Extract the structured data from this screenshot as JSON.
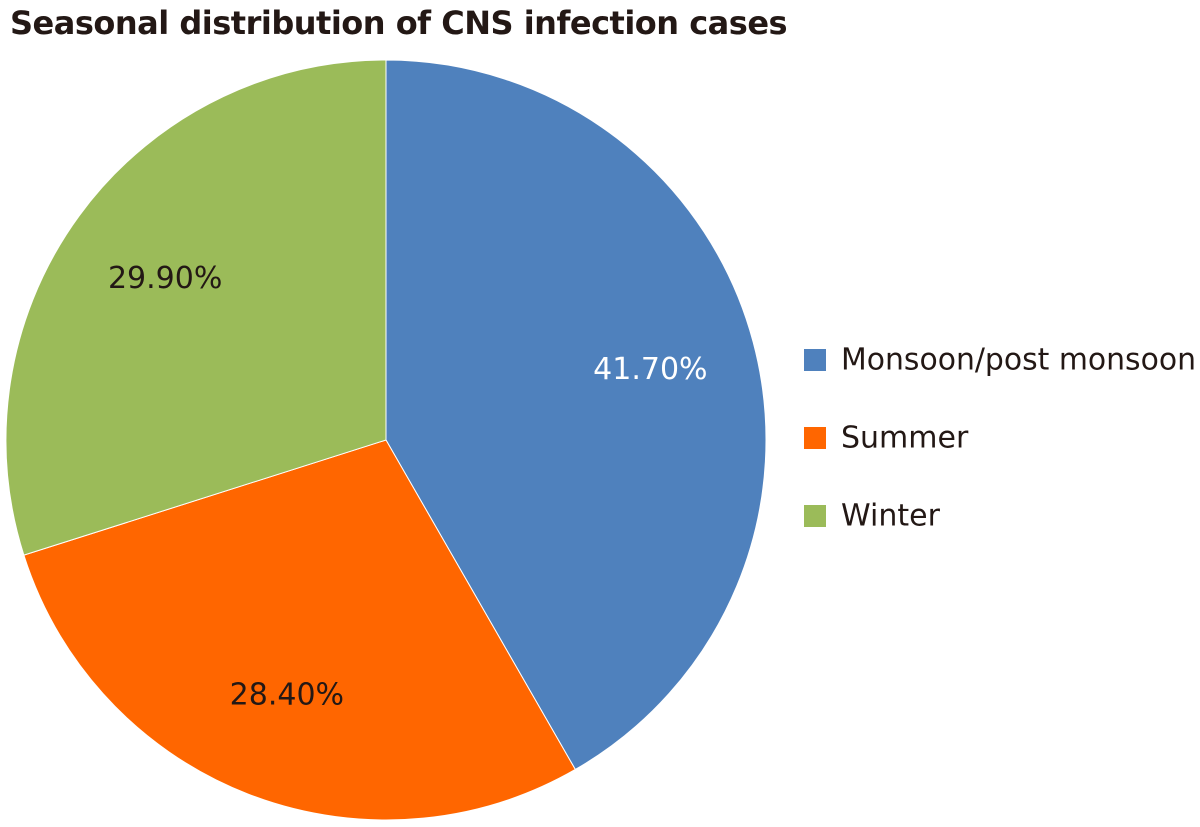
{
  "chart_data": {
    "type": "pie",
    "title": "Seasonal distribution of CNS infection cases",
    "legend_position": "right",
    "slices": [
      {
        "name": "Monsoon/post monsoon",
        "value": 41.7,
        "label": "41.70%",
        "color": "#4F81BD",
        "label_color": "#ffffff"
      },
      {
        "name": "Summer",
        "value": 28.4,
        "label": "28.40%",
        "color": "#FF6600",
        "label_color": "#231815"
      },
      {
        "name": "Winter",
        "value": 29.9,
        "label": "29.90%",
        "color": "#9BBB59",
        "label_color": "#231815"
      }
    ]
  }
}
